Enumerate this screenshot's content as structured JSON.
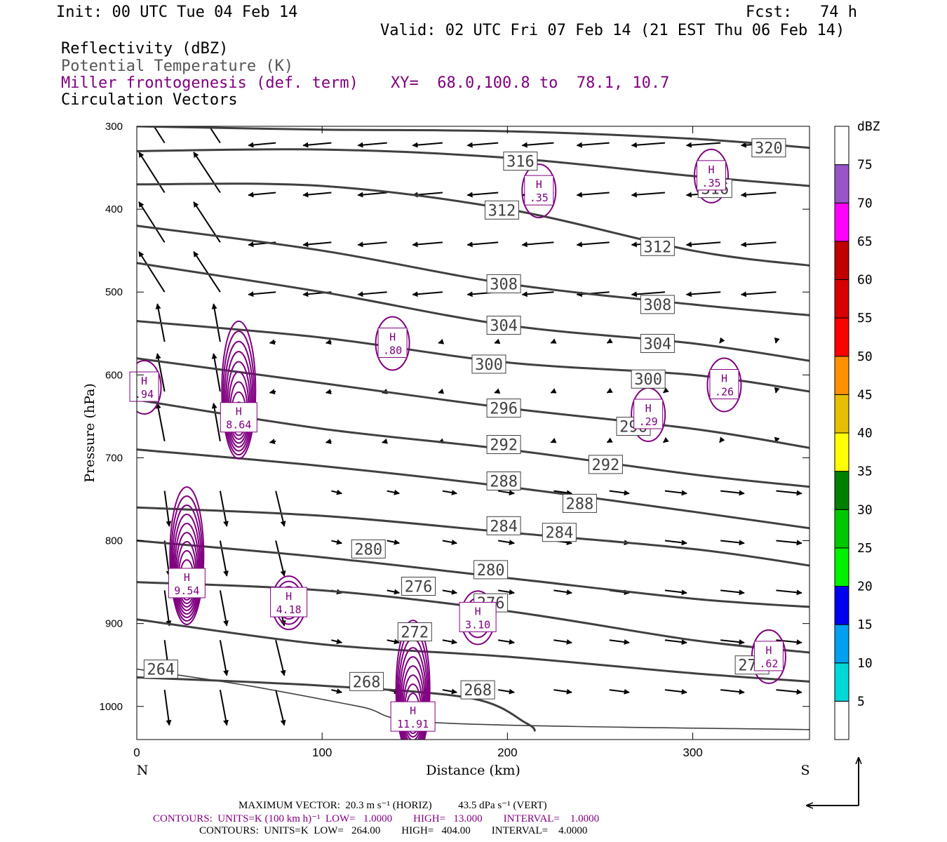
{
  "header": {
    "init": "Init: 00 UTC Tue 04 Feb 14",
    "fcst": "Fcst:   74 h",
    "valid": "Valid: 02 UTC Fri 07 Feb 14 (21 EST Thu 06 Feb 14)",
    "fields": [
      {
        "text": "Reflectivity (dBZ)",
        "color": "#000000"
      },
      {
        "text": "Potential Temperature (K)",
        "color": "#555555"
      },
      {
        "text": "Miller frontogenesis (def. term)",
        "color": "#800080"
      },
      {
        "text": "Circulation Vectors",
        "color": "#000000"
      }
    ],
    "xy": "XY=  68.0,100.8 to  78.1, 10.7"
  },
  "chart_data": {
    "type": "cross-section",
    "xlabel": "Distance (km)",
    "ylabel": "Pressure (hPa)",
    "x_ticks": [
      0,
      100,
      200,
      300
    ],
    "y_ticks": [
      300,
      400,
      500,
      600,
      700,
      800,
      900,
      1000
    ],
    "xlim": [
      0,
      363
    ],
    "ylim": [
      300,
      1040
    ],
    "left_end_label": "N",
    "right_end_label": "S",
    "theta_contours": [
      {
        "theta": 320,
        "points": [
          [
            0,
            300
          ],
          [
            100,
            304
          ],
          [
            200,
            306
          ],
          [
            300,
            315
          ],
          [
            363,
            326
          ]
        ],
        "labels": [
          {
            "text": "320",
            "x": 341,
            "p": 326
          }
        ]
      },
      {
        "theta": 316,
        "points": [
          [
            0,
            330
          ],
          [
            100,
            328
          ],
          [
            200,
            338
          ],
          [
            300,
            360
          ],
          [
            363,
            372
          ]
        ],
        "labels": [
          {
            "text": "316",
            "x": 207,
            "p": 342
          },
          {
            "text": "316",
            "x": 312,
            "p": 375
          }
        ]
      },
      {
        "theta": 312,
        "points": [
          [
            0,
            370
          ],
          [
            100,
            372
          ],
          [
            200,
            400
          ],
          [
            300,
            450
          ],
          [
            363,
            468
          ]
        ],
        "labels": [
          {
            "text": "312",
            "x": 197,
            "p": 401
          },
          {
            "text": "312",
            "x": 281,
            "p": 445
          }
        ]
      },
      {
        "theta": 308,
        "points": [
          [
            0,
            420
          ],
          [
            100,
            450
          ],
          [
            200,
            490
          ],
          [
            300,
            515
          ],
          [
            363,
            528
          ]
        ],
        "labels": [
          {
            "text": "308",
            "x": 198,
            "p": 490
          },
          {
            "text": "308",
            "x": 281,
            "p": 515
          }
        ]
      },
      {
        "theta": 304,
        "points": [
          [
            0,
            465
          ],
          [
            100,
            500
          ],
          [
            200,
            540
          ],
          [
            300,
            562
          ],
          [
            363,
            583
          ]
        ],
        "labels": [
          {
            "text": "304",
            "x": 198,
            "p": 540
          },
          {
            "text": "304",
            "x": 281,
            "p": 562
          }
        ]
      },
      {
        "theta": 300,
        "points": [
          [
            0,
            535
          ],
          [
            100,
            555
          ],
          [
            200,
            585
          ],
          [
            300,
            600
          ],
          [
            363,
            620
          ]
        ],
        "labels": [
          {
            "text": "300",
            "x": 190,
            "p": 587
          },
          {
            "text": "300",
            "x": 276,
            "p": 605
          }
        ]
      },
      {
        "theta": 296,
        "points": [
          [
            0,
            580
          ],
          [
            100,
            610
          ],
          [
            200,
            640
          ],
          [
            300,
            665
          ],
          [
            363,
            688
          ]
        ],
        "labels": [
          {
            "text": "296",
            "x": 198,
            "p": 640
          },
          {
            "text": "296",
            "x": 268,
            "p": 662
          }
        ]
      },
      {
        "theta": 292,
        "points": [
          [
            0,
            630
          ],
          [
            100,
            665
          ],
          [
            200,
            690
          ],
          [
            300,
            720
          ],
          [
            363,
            735
          ]
        ],
        "labels": [
          {
            "text": "292",
            "x": 198,
            "p": 684
          },
          {
            "text": "292",
            "x": 253,
            "p": 708
          }
        ]
      },
      {
        "theta": 288,
        "points": [
          [
            0,
            690
          ],
          [
            100,
            710
          ],
          [
            200,
            735
          ],
          [
            300,
            765
          ],
          [
            363,
            785
          ]
        ],
        "labels": [
          {
            "text": "288",
            "x": 198,
            "p": 728
          },
          {
            "text": "288",
            "x": 239,
            "p": 755
          }
        ]
      },
      {
        "theta": 284,
        "points": [
          [
            0,
            760
          ],
          [
            100,
            770
          ],
          [
            200,
            790
          ],
          [
            300,
            810
          ],
          [
            363,
            830
          ]
        ],
        "labels": [
          {
            "text": "284",
            "x": 198,
            "p": 782
          },
          {
            "text": "284",
            "x": 228,
            "p": 790
          }
        ]
      },
      {
        "theta": 280,
        "points": [
          [
            0,
            800
          ],
          [
            100,
            820
          ],
          [
            200,
            845
          ],
          [
            300,
            870
          ],
          [
            363,
            880
          ]
        ],
        "labels": [
          {
            "text": "280",
            "x": 125,
            "p": 810
          },
          {
            "text": "280",
            "x": 191,
            "p": 835
          }
        ]
      },
      {
        "theta": 276,
        "points": [
          [
            0,
            850
          ],
          [
            100,
            860
          ],
          [
            200,
            885
          ],
          [
            300,
            920
          ],
          [
            363,
            935
          ]
        ],
        "labels": [
          {
            "text": "276",
            "x": 152,
            "p": 855
          },
          {
            "text": "276",
            "x": 191,
            "p": 875
          }
        ]
      },
      {
        "theta": 272,
        "points": [
          [
            0,
            895
          ],
          [
            100,
            925
          ],
          [
            200,
            940
          ],
          [
            300,
            960
          ],
          [
            363,
            970
          ]
        ],
        "labels": [
          {
            "text": "272",
            "x": 150,
            "p": 910
          },
          {
            "text": "272",
            "x": 332,
            "p": 950
          }
        ]
      },
      {
        "theta": 268,
        "points": [
          [
            0,
            965
          ],
          [
            100,
            975
          ],
          [
            180,
            990
          ],
          [
            210,
            1020
          ],
          [
            215,
            1030
          ]
        ],
        "labels": [
          {
            "text": "268",
            "x": 124,
            "p": 970
          },
          {
            "text": "268",
            "x": 184,
            "p": 980
          }
        ]
      },
      {
        "theta": 264,
        "points": [
          [
            0,
            955
          ],
          [
            60,
            975
          ],
          [
            120,
            1000
          ],
          [
            165,
            1020
          ],
          [
            363,
            1028
          ]
        ],
        "labels": [
          {
            "text": "264",
            "x": 13,
            "p": 955
          }
        ]
      }
    ],
    "frontogenesis_maxima": [
      {
        "label": "H",
        "value": ".94",
        "x": 4,
        "p": 615
      },
      {
        "label": "H",
        "value": "8.64",
        "x": 55,
        "p": 652
      },
      {
        "label": "H",
        "value": "9.54",
        "x": 27,
        "p": 852
      },
      {
        "label": "H",
        "value": "4.18",
        "x": 82,
        "p": 875
      },
      {
        "label": "H",
        "value": "11.91",
        "x": 149,
        "p": 1013
      },
      {
        "label": "H",
        "value": "3.10",
        "x": 184,
        "p": 893
      },
      {
        "label": "H",
        "value": ".80",
        "x": 138,
        "p": 562
      },
      {
        "label": "H",
        "value": ".35",
        "x": 217,
        "p": 378
      },
      {
        "label": "H",
        "value": ".35",
        "x": 310,
        "p": 360
      },
      {
        "label": "H",
        "value": ".26",
        "x": 317,
        "p": 612
      },
      {
        "label": "H",
        "value": ".29",
        "x": 276,
        "p": 648
      },
      {
        "label": "H",
        "value": ".62",
        "x": 341,
        "p": 940
      }
    ],
    "dbz_colorbar": {
      "title": "dBZ",
      "labels": [
        "5",
        "10",
        "15",
        "20",
        "25",
        "30",
        "35",
        "40",
        "45",
        "50",
        "55",
        "60",
        "65",
        "70",
        "75"
      ],
      "colors": [
        "#00d8d8",
        "#00a0f0",
        "#0000f0",
        "#00f000",
        "#00c800",
        "#008000",
        "#ffff00",
        "#e6bf00",
        "#ff9000",
        "#ff0000",
        "#d60000",
        "#c00000",
        "#ff00ff",
        "#9955c8",
        "#ffffff"
      ]
    },
    "vector_colors": {
      "theta": "#404040",
      "fronto": "#800080",
      "vectors": "#000000"
    }
  },
  "footer": {
    "line1": "MAXIMUM VECTOR:  20.3 m s⁻¹ (HORIZ)          43.5 dPa s⁻¹ (VERT)",
    "line2": "CONTOURS:  UNITS=K (100 km h)⁻¹  LOW=   1.0000        HIGH=   13.000        INTERVAL=    1.0000",
    "line3": "CONTOURS:  UNITS=K  LOW=   264.00        HIGH=   404.00        INTERVAL=    4.0000"
  }
}
